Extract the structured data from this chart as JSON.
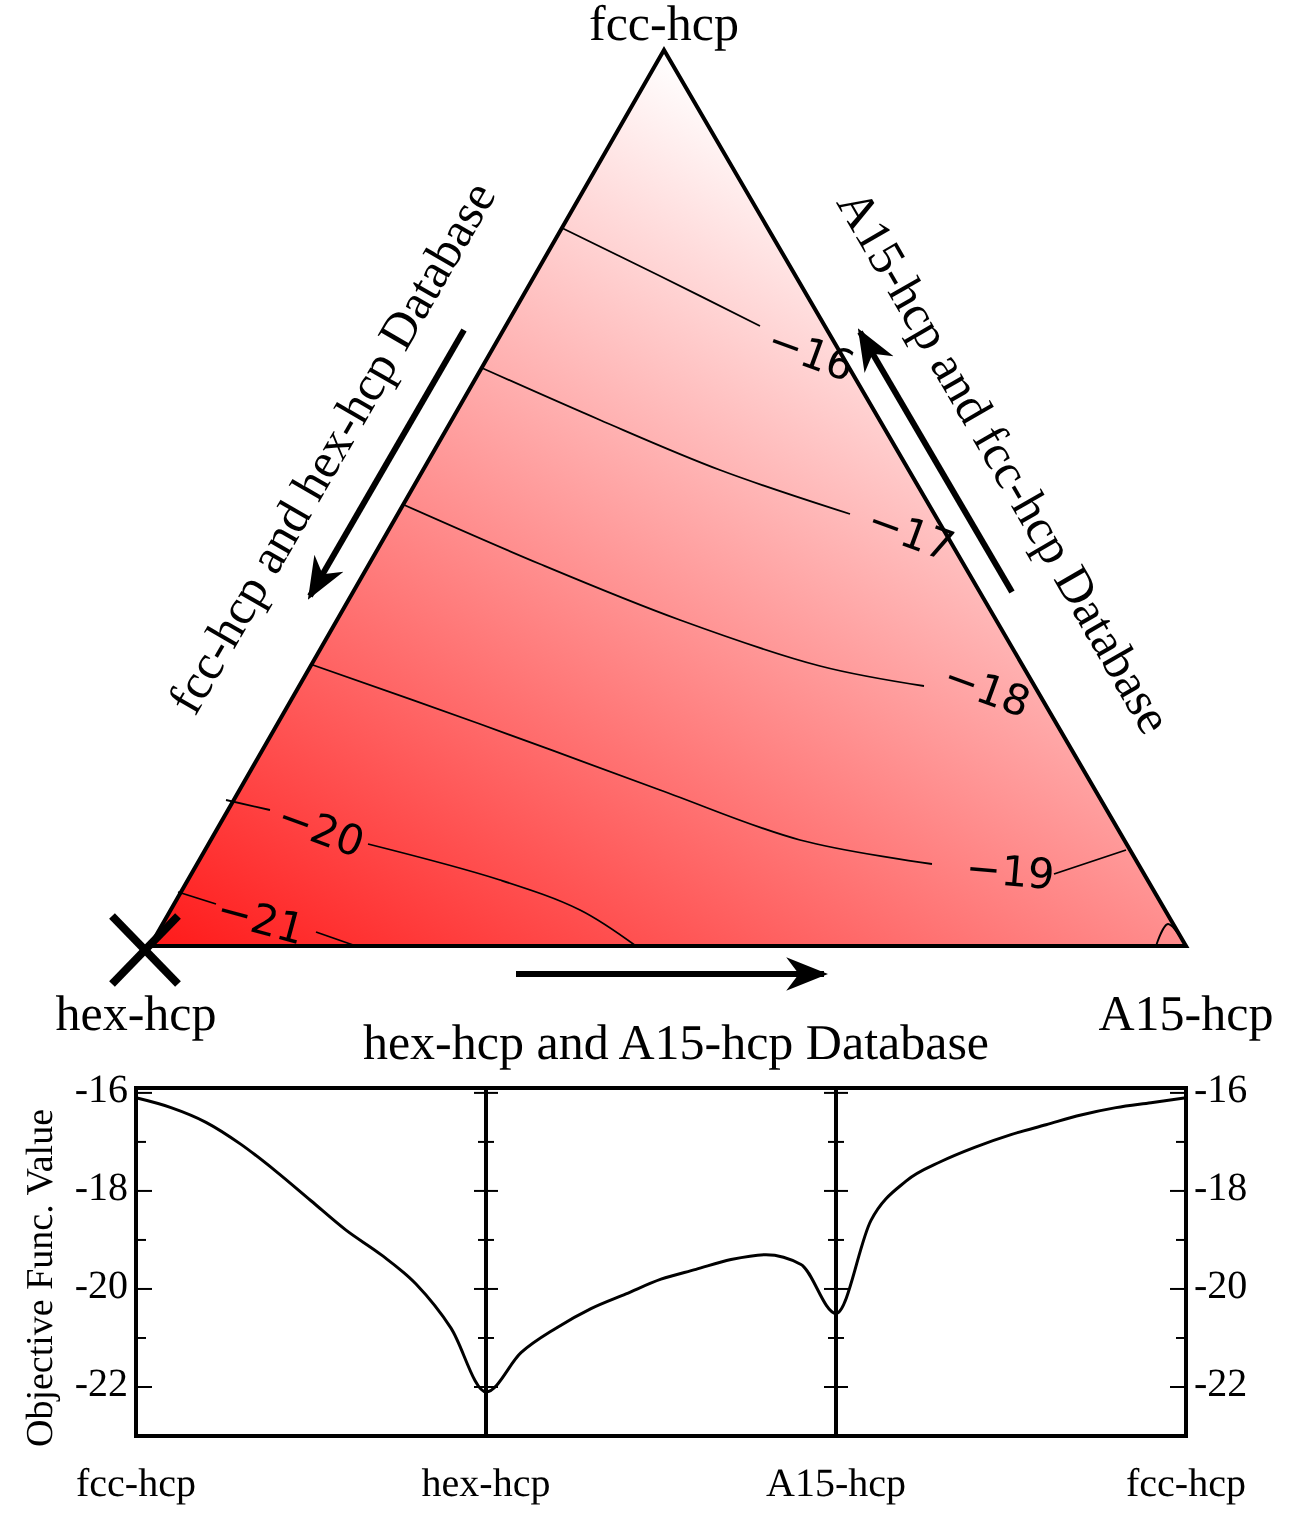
{
  "chart_data": [
    {
      "type": "other",
      "categories": [
        "fcc-hcp",
        "hex-hcp",
        "A15-hcp"
      ],
      "annotations": [
        "fcc-hcp and hex-hcp Database",
        "A15-hcp and fcc-hcp Database",
        "hex-hcp and A15-hcp Database",
        "−16",
        "−17",
        "−18",
        "−19",
        "−20",
        "−21"
      ]
    },
    {
      "type": "line",
      "ylabel": "Objective Func. Value",
      "categories": [
        "fcc-hcp",
        null,
        null,
        null,
        null,
        null,
        null,
        null,
        null,
        null,
        "hex-hcp",
        null,
        null,
        null,
        null,
        null,
        null,
        null,
        null,
        null,
        "A15-hcp",
        null,
        null,
        null,
        null,
        null,
        null,
        null,
        null,
        null,
        "fcc-hcp"
      ],
      "ylim": [
        -23,
        -15.9
      ],
      "y2lim": [
        -23,
        -15.9
      ],
      "yticks": [
        -16,
        {
          "value": -17,
          "label": null
        },
        -18,
        {
          "value": -19,
          "label": null
        },
        -20,
        {
          "value": -21,
          "label": null
        },
        -22
      ],
      "y2ticks": [
        -16,
        {
          "value": -17,
          "label": null
        },
        -18,
        {
          "value": -19,
          "label": null
        },
        -20,
        {
          "value": -21,
          "label": null
        },
        -22
      ],
      "ref_lines": [
        {
          "axis": "x",
          "value": "hex-hcp"
        },
        {
          "axis": "x",
          "value": "A15-hcp"
        }
      ],
      "series": [
        {
          "color": "#000000",
          "values": [
            -16.1,
            -16.3,
            -16.6,
            -17.05,
            -17.6,
            -18.2,
            -18.8,
            -19.3,
            -19.9,
            -20.8,
            -22.1,
            -21.3,
            -20.8,
            -20.4,
            -20.1,
            -19.8,
            -19.6,
            -19.4,
            -19.3,
            -19.5,
            -20.5,
            -18.6,
            -17.8,
            -17.4,
            -17.1,
            -16.85,
            -16.65,
            -16.45,
            -16.3,
            -16.2,
            -16.1
          ]
        }
      ]
    }
  ]
}
